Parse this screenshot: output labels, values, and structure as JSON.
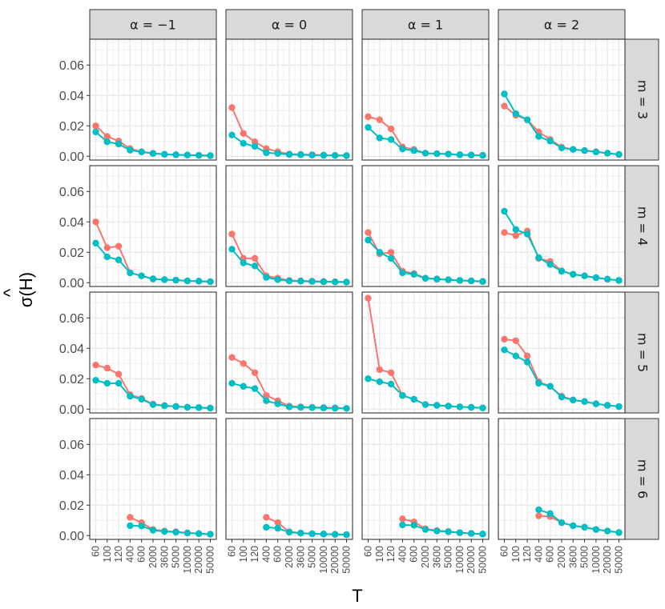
{
  "chart_data": {
    "type": "line",
    "title": "",
    "xlabel": "T",
    "ylabel_base": "σ(",
    "ylabel_var": "H",
    "ylabel_hat": "^",
    "ylabel_close": ")",
    "x_categories": [
      "60",
      "100",
      "120",
      "400",
      "600",
      "2000",
      "3600",
      "5000",
      "10000",
      "20000",
      "50000"
    ],
    "y_ticks": [
      0.0,
      0.02,
      0.04,
      0.06
    ],
    "y_tick_labels": [
      "0.00",
      "0.02",
      "0.04",
      "0.06"
    ],
    "ylim": [
      -0.0025,
      0.077
    ],
    "col_labels": [
      "α = −1",
      "α = 0",
      "α = 1",
      "α = 2"
    ],
    "row_labels": [
      "m = 3",
      "m = 4",
      "m = 5",
      "m = 6"
    ],
    "series_colors": [
      "#F8766D",
      "#00BFC4"
    ],
    "panels": [
      [
        {
          "s1": [
            0.02,
            0.013,
            0.01,
            0.005,
            0.003,
            0.002,
            0.0013,
            0.001,
            0.0008,
            0.0006,
            0.0004
          ],
          "s2": [
            0.016,
            0.0095,
            0.008,
            0.004,
            0.0028,
            0.0018,
            0.0013,
            0.001,
            0.0008,
            0.0006,
            0.0004
          ]
        },
        {
          "s1": [
            0.032,
            0.015,
            0.0095,
            0.005,
            0.003,
            0.0015,
            0.0012,
            0.001,
            0.0008,
            0.0006,
            0.0004
          ],
          "s2": [
            0.014,
            0.0085,
            0.0065,
            0.0023,
            0.0018,
            0.0012,
            0.001,
            0.0008,
            0.0006,
            0.0005,
            0.0004
          ]
        },
        {
          "s1": [
            0.026,
            0.024,
            0.018,
            0.006,
            0.0045,
            0.002,
            0.0017,
            0.0015,
            0.001,
            0.0008,
            0.0006
          ],
          "s2": [
            0.019,
            0.012,
            0.011,
            0.0048,
            0.0037,
            0.002,
            0.0017,
            0.0014,
            0.001,
            0.0008,
            0.0006
          ]
        },
        {
          "s1": [
            0.033,
            0.027,
            0.024,
            0.016,
            0.011,
            0.006,
            0.0045,
            0.0038,
            0.003,
            0.002,
            0.0012
          ],
          "s2": [
            0.041,
            0.028,
            0.024,
            0.013,
            0.01,
            0.0055,
            0.0045,
            0.0037,
            0.0028,
            0.002,
            0.0012
          ]
        }
      ],
      [
        {
          "s1": [
            0.04,
            0.023,
            0.024,
            0.0065,
            0.0045,
            0.0025,
            0.002,
            0.0017,
            0.0012,
            0.001,
            0.0007
          ],
          "s2": [
            0.026,
            0.017,
            0.015,
            0.0065,
            0.0045,
            0.0025,
            0.002,
            0.0017,
            0.0012,
            0.001,
            0.0007
          ]
        },
        {
          "s1": [
            0.032,
            0.016,
            0.016,
            0.0045,
            0.003,
            0.0015,
            0.0012,
            0.001,
            0.0008,
            0.0006,
            0.0005
          ],
          "s2": [
            0.022,
            0.013,
            0.011,
            0.0035,
            0.002,
            0.0012,
            0.001,
            0.0008,
            0.0006,
            0.0005,
            0.0004
          ]
        },
        {
          "s1": [
            0.033,
            0.019,
            0.02,
            0.0075,
            0.006,
            0.003,
            0.0025,
            0.002,
            0.0015,
            0.0012,
            0.0008
          ],
          "s2": [
            0.028,
            0.02,
            0.016,
            0.0065,
            0.0055,
            0.0028,
            0.0023,
            0.0019,
            0.0015,
            0.0012,
            0.0008
          ]
        },
        {
          "s1": [
            0.033,
            0.031,
            0.034,
            0.016,
            0.014,
            0.0078,
            0.0055,
            0.0045,
            0.0033,
            0.0023,
            0.0015
          ],
          "s2": [
            0.047,
            0.035,
            0.032,
            0.0165,
            0.012,
            0.0075,
            0.0055,
            0.0045,
            0.0033,
            0.0023,
            0.0015
          ]
        }
      ],
      [
        {
          "s1": [
            0.029,
            0.027,
            0.023,
            0.0095,
            0.007,
            0.0033,
            0.0023,
            0.0018,
            0.0013,
            0.001,
            0.0007
          ],
          "s2": [
            0.019,
            0.017,
            0.017,
            0.0085,
            0.0065,
            0.003,
            0.0022,
            0.0017,
            0.0012,
            0.001,
            0.0007
          ]
        },
        {
          "s1": [
            0.034,
            0.03,
            0.024,
            0.009,
            0.0055,
            0.002,
            0.0015,
            0.0012,
            0.001,
            0.0008,
            0.0005
          ],
          "s2": [
            0.017,
            0.015,
            0.0135,
            0.0055,
            0.0035,
            0.0015,
            0.0012,
            0.001,
            0.0008,
            0.0006,
            0.0005
          ]
        },
        {
          "s1": [
            0.073,
            0.026,
            0.024,
            0.009,
            0.0065,
            0.003,
            0.0025,
            0.002,
            0.0015,
            0.0012,
            0.0008
          ],
          "s2": [
            0.02,
            0.018,
            0.0165,
            0.009,
            0.0065,
            0.003,
            0.0025,
            0.002,
            0.0015,
            0.0012,
            0.0008
          ]
        },
        {
          "s1": [
            0.046,
            0.045,
            0.035,
            0.018,
            0.015,
            0.0085,
            0.006,
            0.005,
            0.0035,
            0.0025,
            0.0017
          ],
          "s2": [
            0.039,
            0.035,
            0.031,
            0.017,
            0.015,
            0.008,
            0.006,
            0.005,
            0.0035,
            0.0025,
            0.0017
          ]
        }
      ],
      [
        {
          "s1": [
            null,
            null,
            null,
            0.012,
            0.0085,
            0.004,
            0.003,
            0.0025,
            0.0018,
            0.0013,
            0.0009
          ],
          "s2": [
            null,
            null,
            null,
            0.0065,
            0.0063,
            0.0035,
            0.0027,
            0.0022,
            0.0017,
            0.0013,
            0.0009
          ]
        },
        {
          "s1": [
            null,
            null,
            null,
            0.012,
            0.0085,
            0.0025,
            0.0017,
            0.0012,
            0.001,
            0.0008,
            0.0006
          ],
          "s2": [
            null,
            null,
            null,
            0.0055,
            0.0048,
            0.0022,
            0.0016,
            0.0012,
            0.001,
            0.0008,
            0.0006
          ]
        },
        {
          "s1": [
            null,
            null,
            null,
            0.011,
            0.009,
            0.0045,
            0.0033,
            0.0027,
            0.0019,
            0.0014,
            0.001
          ],
          "s2": [
            null,
            null,
            null,
            0.007,
            0.0068,
            0.004,
            0.003,
            0.0025,
            0.0019,
            0.0014,
            0.001
          ]
        },
        {
          "s1": [
            null,
            null,
            null,
            0.013,
            0.0125,
            0.0085,
            0.0065,
            0.0055,
            0.004,
            0.003,
            0.002
          ],
          "s2": [
            null,
            null,
            null,
            0.017,
            0.0145,
            0.0085,
            0.0065,
            0.0055,
            0.004,
            0.003,
            0.002
          ]
        }
      ]
    ]
  }
}
